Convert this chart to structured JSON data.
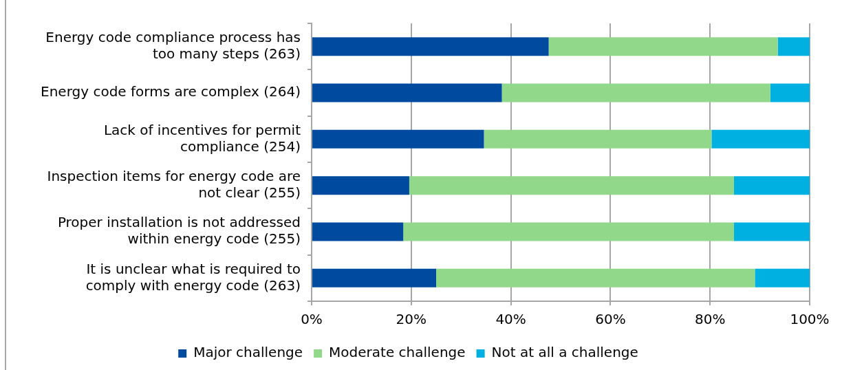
{
  "chart_data": {
    "type": "bar",
    "orientation": "horizontal",
    "stacked": true,
    "categories": [
      "Energy code compliance process has too many steps (263)",
      "Energy code forms are complex (264)",
      "Lack of incentives for permit compliance (254)",
      "Inspection items for energy code are not clear (255)",
      "Proper installation is not addressed within energy code (255)",
      "It is unclear what is required to comply with energy code (263)"
    ],
    "series": [
      {
        "name": "Major challenge",
        "color": "#004a9f",
        "values": [
          47.6,
          38.2,
          34.6,
          19.6,
          18.4,
          25.0
        ]
      },
      {
        "name": "Moderate challenge",
        "color": "#92d88a",
        "values": [
          46.0,
          53.9,
          45.7,
          65.2,
          66.4,
          64.0
        ]
      },
      {
        "name": "Not at all a challenge",
        "color": "#00b0e0",
        "values": [
          6.4,
          7.9,
          19.7,
          15.2,
          15.2,
          11.0
        ]
      }
    ],
    "xlim": [
      0,
      100
    ],
    "xticks": [
      {
        "value": 0,
        "label": "0%"
      },
      {
        "value": 20,
        "label": "20%"
      },
      {
        "value": 40,
        "label": "40%"
      },
      {
        "value": 60,
        "label": "60%"
      },
      {
        "value": 80,
        "label": "80%"
      },
      {
        "value": 100,
        "label": "100%"
      }
    ],
    "grid": "x",
    "legend": "bottom"
  }
}
